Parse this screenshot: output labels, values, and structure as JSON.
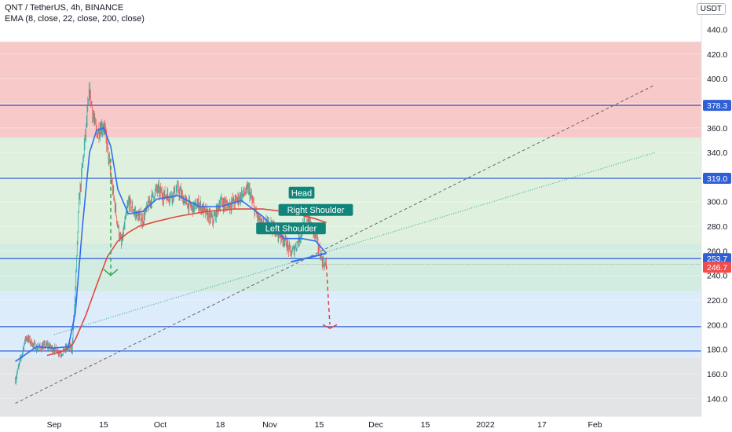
{
  "header": {
    "title": "QNT / TetherUS, 4h, BINANCE",
    "indicator": "EMA (8, close, 22, close, 200, close)",
    "currency_badge": "USDT"
  },
  "colors": {
    "resistance_zone": "#f8c9c9",
    "mid_zone": "#dff1de",
    "lower_zone": "#d3ece2",
    "support_zone": "#dcecfb",
    "bottom_zone": "#e3e4e6",
    "level_line": "#2f5fd6",
    "ema_fast": "#2f6df5",
    "ema_slow": "#e04a3f",
    "candle_up": "#26a69a",
    "candle_down": "#ef5350",
    "label_bg": "#11857a",
    "current_price": "#f04d4d"
  },
  "chart_data": {
    "type": "line",
    "title": "QNT / TetherUS, 4h, BINANCE",
    "ylim": [
      125,
      447
    ],
    "y_ticks": [
      140.0,
      160.0,
      180.0,
      200.0,
      220.0,
      240.0,
      260.0,
      280.0,
      300.0,
      320.0,
      340.0,
      360.0,
      380.0,
      400.0,
      420.0,
      440.0
    ],
    "x_tick_labels": [
      "Sep",
      "15",
      "Oct",
      "18",
      "Nov",
      "15",
      "Dec",
      "15",
      "2022",
      "17",
      "Feb"
    ],
    "x_tick_dates": [
      "2021-09-01",
      "2021-09-15",
      "2021-10-01",
      "2021-10-18",
      "2021-11-01",
      "2021-11-15",
      "2021-12-01",
      "2021-12-15",
      "2022-01-01",
      "2022-01-17",
      "2022-02-01"
    ],
    "level_lines": [
      378.3,
      319.0,
      253.7,
      198.4,
      178.6
    ],
    "zones": [
      {
        "from": 352,
        "to": 430,
        "color": "#f8c9c9"
      },
      {
        "from": 266,
        "to": 352,
        "color": "#dff1de"
      },
      {
        "from": 227,
        "to": 266,
        "color": "#d3ece2"
      },
      {
        "from": 173,
        "to": 227,
        "color": "#dcecfb"
      },
      {
        "from": 125,
        "to": 173,
        "color": "#e3e4e6"
      }
    ],
    "price_labels": [
      {
        "value": 378.3,
        "text": "378.3"
      },
      {
        "value": 319.0,
        "text": "319.0"
      },
      {
        "value": 253.7,
        "text": "253.7"
      },
      {
        "value": 246.7,
        "text": "246.7",
        "current": true
      }
    ],
    "annotations": [
      {
        "text": "Head",
        "date": "2021-11-10",
        "y": 307
      },
      {
        "text": "Right Shoulder",
        "date": "2021-11-14",
        "y": 293
      },
      {
        "text": "Left Shoulder",
        "date": "2021-11-07",
        "y": 278
      }
    ],
    "series": [
      {
        "name": "price",
        "x": [
          "2021-08-21",
          "2021-08-24",
          "2021-08-27",
          "2021-08-30",
          "2021-09-01",
          "2021-09-03",
          "2021-09-05",
          "2021-09-06",
          "2021-09-07",
          "2021-09-08",
          "2021-09-09",
          "2021-09-10",
          "2021-09-11",
          "2021-09-12",
          "2021-09-13",
          "2021-09-14",
          "2021-09-15",
          "2021-09-16",
          "2021-09-17",
          "2021-09-18",
          "2021-09-19",
          "2021-09-20",
          "2021-09-22",
          "2021-09-24",
          "2021-09-26",
          "2021-09-28",
          "2021-09-30",
          "2021-10-02",
          "2021-10-04",
          "2021-10-06",
          "2021-10-08",
          "2021-10-10",
          "2021-10-12",
          "2021-10-14",
          "2021-10-16",
          "2021-10-18",
          "2021-10-20",
          "2021-10-22",
          "2021-10-24",
          "2021-10-26",
          "2021-10-28",
          "2021-10-30",
          "2021-11-01",
          "2021-11-03",
          "2021-11-05",
          "2021-11-07",
          "2021-11-08",
          "2021-11-10",
          "2021-11-11",
          "2021-11-12",
          "2021-11-13",
          "2021-11-14",
          "2021-11-15",
          "2021-11-16",
          "2021-11-17"
        ],
        "values": [
          155,
          190,
          181,
          183,
          180,
          177,
          182,
          180,
          230,
          300,
          330,
          360,
          390,
          370,
          355,
          360,
          362,
          345,
          320,
          300,
          280,
          265,
          300,
          290,
          285,
          300,
          310,
          305,
          305,
          310,
          300,
          295,
          298,
          290,
          285,
          300,
          297,
          300,
          305,
          310,
          290,
          280,
          283,
          275,
          270,
          258,
          262,
          275,
          290,
          285,
          278,
          272,
          260,
          250,
          248
        ]
      },
      {
        "name": "EMA 200",
        "x": [
          "2021-08-30",
          "2021-09-03",
          "2021-09-06",
          "2021-09-07",
          "2021-09-10",
          "2021-09-13",
          "2021-09-16",
          "2021-09-19",
          "2021-09-22",
          "2021-09-25",
          "2021-09-30",
          "2021-10-06",
          "2021-10-14",
          "2021-10-22",
          "2021-10-30",
          "2021-11-05",
          "2021-11-10",
          "2021-11-14",
          "2021-11-17"
        ],
        "values": [
          175,
          178,
          183,
          188,
          208,
          232,
          255,
          268,
          275,
          280,
          284,
          288,
          292,
          294,
          294,
          292,
          289,
          286,
          283
        ]
      },
      {
        "name": "EMA 22",
        "x": [
          "2021-08-21",
          "2021-08-27",
          "2021-09-01",
          "2021-09-05",
          "2021-09-07",
          "2021-09-09",
          "2021-09-11",
          "2021-09-13",
          "2021-09-15",
          "2021-09-17",
          "2021-09-19",
          "2021-09-22",
          "2021-09-26",
          "2021-09-30",
          "2021-10-06",
          "2021-10-12",
          "2021-10-18",
          "2021-10-24",
          "2021-10-30",
          "2021-11-05",
          "2021-11-10",
          "2021-11-14",
          "2021-11-17"
        ],
        "values": [
          170,
          182,
          181,
          182,
          210,
          280,
          340,
          358,
          360,
          345,
          310,
          290,
          292,
          302,
          305,
          296,
          296,
          301,
          288,
          270,
          270,
          268,
          258
        ]
      }
    ]
  }
}
